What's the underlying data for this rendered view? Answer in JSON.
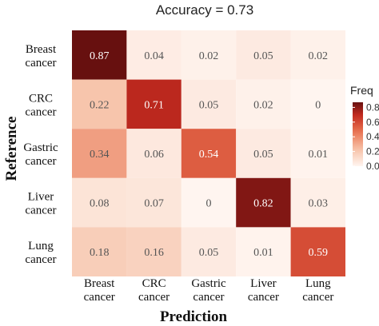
{
  "chart_data": {
    "type": "heatmap",
    "title": "Accuracy = 0.73",
    "xlabel": "Prediction",
    "ylabel": "Reference",
    "rows": [
      [
        "Breast",
        "cancer"
      ],
      [
        "CRC",
        "cancer"
      ],
      [
        "Gastric",
        "cancer"
      ],
      [
        "Liver",
        "cancer"
      ],
      [
        "Lung",
        "cancer"
      ]
    ],
    "cols": [
      [
        "Breast",
        "cancer"
      ],
      [
        "CRC",
        "cancer"
      ],
      [
        "Gastric",
        "cancer"
      ],
      [
        "Liver",
        "cancer"
      ],
      [
        "Lung",
        "cancer"
      ]
    ],
    "values": [
      [
        0.87,
        0.04,
        0.02,
        0.05,
        0.02
      ],
      [
        0.22,
        0.71,
        0.05,
        0.02,
        0
      ],
      [
        0.34,
        0.06,
        0.54,
        0.05,
        0.01
      ],
      [
        0.08,
        0.07,
        0,
        0.82,
        0.03
      ],
      [
        0.18,
        0.16,
        0.05,
        0.01,
        0.59
      ]
    ],
    "value_labels": [
      [
        "0.87",
        "0.04",
        "0.02",
        "0.05",
        "0.02"
      ],
      [
        "0.22",
        "0.71",
        "0.05",
        "0.02",
        "0"
      ],
      [
        "0.34",
        "0.06",
        "0.54",
        "0.05",
        "0.01"
      ],
      [
        "0.08",
        "0.07",
        "0",
        "0.82",
        "0.03"
      ],
      [
        "0.18",
        "0.16",
        "0.05",
        "0.01",
        "0.59"
      ]
    ],
    "legend": {
      "title": "Freq",
      "ticks": [
        "0.0",
        "0.2",
        "0.4",
        "0.6",
        "0.8"
      ],
      "tick_values": [
        0,
        0.2,
        0.4,
        0.6,
        0.8
      ],
      "range": [
        0,
        0.87
      ],
      "placement": "right"
    },
    "colors": {
      "low": "#fff5f0",
      "mid1": "#f7c6ad",
      "mid2": "#e8714f",
      "mid3": "#c22a1f",
      "high": "#67100f"
    }
  }
}
